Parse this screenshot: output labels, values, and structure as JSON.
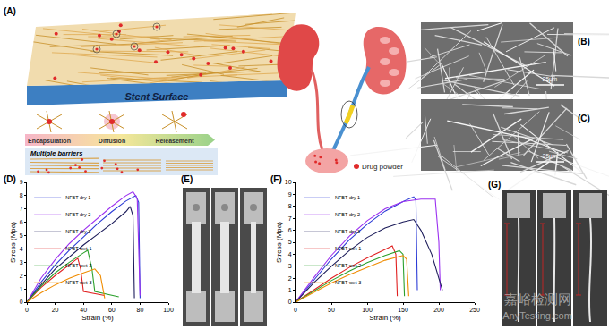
{
  "figure": {
    "panel_labels": [
      "(A)",
      "(B)",
      "(C)",
      "(D)",
      "(E)",
      "(F)",
      "(G)"
    ],
    "diagram": {
      "surface_label": "Stent Surface",
      "stages": [
        "Encapsulation",
        "Diffusion",
        "Releasement"
      ],
      "barrier_label": "Multiple barriers",
      "legend_label": "Drug powder"
    },
    "scale_bars": [
      "25μm",
      "25μm"
    ],
    "watermark": [
      "嘉峪检测网",
      "AnyTesting.com"
    ]
  },
  "chart_data": [
    {
      "type": "line",
      "x_label": "Strain (%)",
      "y_label": "Stress (Mpa)",
      "xlim": [
        0,
        100
      ],
      "ylim": [
        0,
        9
      ],
      "xticks": [
        0,
        20,
        40,
        60,
        80,
        100
      ],
      "yticks": [
        0,
        1,
        2,
        3,
        4,
        5,
        6,
        7,
        8,
        9
      ],
      "grid": false,
      "legend": "top left",
      "series": [
        {
          "name": "NFBT-dry 1",
          "color": "#2b3bd6",
          "x": [
            0,
            10,
            20,
            30,
            40,
            50,
            60,
            70,
            77,
            79,
            80
          ],
          "values": [
            0,
            1.5,
            2.8,
            3.9,
            4.9,
            5.9,
            6.8,
            7.6,
            8.0,
            7.5,
            0.3
          ]
        },
        {
          "name": "NFBT-dry 2",
          "color": "#9b30f0",
          "x": [
            0,
            10,
            20,
            30,
            40,
            50,
            60,
            70,
            75,
            78,
            80
          ],
          "values": [
            0,
            1.8,
            3.2,
            4.4,
            5.4,
            6.3,
            7.2,
            8.0,
            8.3,
            7.8,
            0.5
          ]
        },
        {
          "name": "NFBT-dry 3",
          "color": "#1c1c5a",
          "x": [
            0,
            10,
            20,
            30,
            40,
            50,
            60,
            70,
            73,
            75,
            76
          ],
          "values": [
            0,
            1.3,
            2.5,
            3.4,
            4.3,
            5.1,
            5.9,
            6.8,
            7.2,
            6.5,
            0.3
          ]
        },
        {
          "name": "NFBT-wet-1",
          "color": "#e02020",
          "x": [
            0,
            10,
            20,
            30,
            36,
            38,
            40,
            55
          ],
          "values": [
            0,
            1.1,
            2.0,
            2.8,
            3.3,
            2.5,
            0.8,
            0.5
          ]
        },
        {
          "name": "NFBT-wet-2",
          "color": "#2ca02c",
          "x": [
            0,
            10,
            20,
            30,
            40,
            43,
            46,
            48,
            65
          ],
          "values": [
            0,
            1.2,
            2.2,
            3.0,
            3.7,
            3.9,
            2.5,
            0.8,
            0.4
          ]
        },
        {
          "name": "NFBT-wet-3",
          "color": "#f08c00",
          "x": [
            0,
            10,
            20,
            30,
            40,
            48,
            52,
            55
          ],
          "values": [
            0,
            0.7,
            1.3,
            1.8,
            2.2,
            2.5,
            2.0,
            0.3
          ]
        }
      ]
    },
    {
      "type": "line",
      "x_label": "Strain (%)",
      "y_label": "Stress (Mpa)",
      "xlim": [
        0,
        250
      ],
      "ylim": [
        0,
        10
      ],
      "xticks": [
        0,
        50,
        100,
        150,
        200,
        250
      ],
      "yticks": [
        0,
        1,
        2,
        3,
        4,
        5,
        6,
        7,
        8,
        9,
        10
      ],
      "grid": false,
      "legend": "top left",
      "series": [
        {
          "name": "NFBT-dry 1",
          "color": "#2b3bd6",
          "x": [
            0,
            25,
            50,
            75,
            100,
            125,
            150,
            165,
            168,
            170
          ],
          "values": [
            0,
            1.8,
            3.6,
            5.2,
            6.5,
            7.6,
            8.4,
            8.8,
            8.5,
            1.0
          ]
        },
        {
          "name": "NFBT-dry 2",
          "color": "#9b30f0",
          "x": [
            0,
            25,
            50,
            75,
            100,
            125,
            150,
            175,
            195,
            200,
            202
          ],
          "values": [
            0,
            2.0,
            3.9,
            5.5,
            6.8,
            7.8,
            8.4,
            8.6,
            8.6,
            5.0,
            1.0
          ]
        },
        {
          "name": "NFBT-dry 3",
          "color": "#1c1c5a",
          "x": [
            0,
            25,
            50,
            75,
            100,
            125,
            150,
            165,
            175,
            190,
            205
          ],
          "values": [
            0,
            1.6,
            3.0,
            4.3,
            5.4,
            6.2,
            6.7,
            6.9,
            6.0,
            4.0,
            1.0
          ]
        },
        {
          "name": "NFBT-wet-1",
          "color": "#e02020",
          "x": [
            0,
            25,
            50,
            75,
            100,
            125,
            135,
            140,
            142
          ],
          "values": [
            0,
            1.0,
            2.0,
            2.9,
            3.7,
            4.4,
            4.7,
            4.0,
            0.5
          ]
        },
        {
          "name": "NFBT-wet-2",
          "color": "#2ca02c",
          "x": [
            0,
            25,
            50,
            75,
            100,
            125,
            145,
            150,
            152
          ],
          "values": [
            0,
            0.9,
            1.8,
            2.6,
            3.3,
            3.9,
            4.3,
            4.0,
            0.5
          ]
        },
        {
          "name": "NFBT-wet-3",
          "color": "#f08c00",
          "x": [
            0,
            25,
            50,
            75,
            100,
            125,
            150,
            155,
            158
          ],
          "values": [
            0,
            0.8,
            1.6,
            2.3,
            2.9,
            3.5,
            3.9,
            3.6,
            0.5
          ]
        }
      ]
    }
  ]
}
